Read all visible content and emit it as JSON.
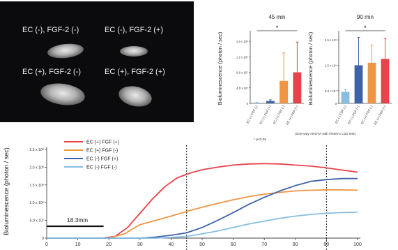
{
  "photo": {
    "labels": [
      "EC (-), FGF-2 (-)",
      "EC (-), FGF-2 (+)",
      "EC (+), FGF-2 (-)",
      "EC (+), FGF-2 (+)"
    ]
  },
  "colors": {
    "ec_pos_fgf_pos": "#e8424b",
    "ec_pos_fgf_neg": "#ee9645",
    "ec_neg_fgf_pos": "#3e62a8",
    "ec_neg_fgf_neg": "#86bde0"
  },
  "bar_common": {
    "ylabel": "Bioluminescence (photon / sec)",
    "significance": "*",
    "categories": [
      "EC (-) FGF (-)",
      "EC (-) FGF (+)",
      "EC (+) FGF (-)",
      "EC (+) FGF (+)"
    ],
    "footnote_left": "* p<0.05",
    "footnote_right": "(One-way ANOVA with Fisher's LSD test)"
  },
  "chart_data": [
    {
      "type": "bar",
      "title": "45 min",
      "ylabel": "Bioluminescence (photon / sec)",
      "categories": [
        "EC (-) FGF (-)",
        "EC (-) FGF (+)",
        "EC (+) FGF (-)",
        "EC (+) FGF (+)"
      ],
      "values": [
        1500000,
        6000000,
        58000000,
        80000000
      ],
      "errors": [
        1000000,
        3000000,
        72000000,
        78000000
      ],
      "ylim": [
        0,
        180000000
      ],
      "yticks": [
        0,
        40000000,
        80000000,
        120000000,
        160000000
      ],
      "ytick_labels": [
        "0",
        "4.0 x 10⁷",
        "8.0 x 10⁷",
        "1.2 x 10⁸",
        "1.6 x 10⁸"
      ]
    },
    {
      "type": "bar",
      "title": "90 min",
      "ylabel": "Bioluminescence (photon / sec)",
      "categories": [
        "EC (-) FGF (-)",
        "EC (-) FGF (+)",
        "EC (+) FGF (-)",
        "EC (+) FGF (+)"
      ],
      "values": [
        45000000,
        150000000,
        160000000,
        175000000
      ],
      "errors": [
        10000000,
        110000000,
        70000000,
        80000000
      ],
      "ylim": [
        0,
        275000000
      ],
      "yticks": [
        0,
        50000000,
        150000000,
        250000000
      ],
      "ytick_labels": [
        "0",
        "5.0 x 10⁷",
        "1.5 x 10⁸",
        "2.5 x 10⁸"
      ]
    },
    {
      "type": "line",
      "ylabel": "Bioluminescence (photon / sec)",
      "xlim": [
        0,
        100
      ],
      "ylim": [
        0,
        250000000
      ],
      "xticks": [
        0,
        10,
        20,
        30,
        40,
        50,
        60,
        70,
        80,
        90,
        100
      ],
      "yticks": [
        0,
        50000000,
        100000000,
        150000000,
        200000000,
        250000000
      ],
      "ytick_labels": [
        "0",
        "5.0 x 10⁷",
        "1.0 x 10⁸",
        "1.5 x 10⁸",
        "2.0 x 10⁸",
        "2.5 x 10⁸"
      ],
      "vlines": [
        45,
        90
      ],
      "annotation": "18.3min",
      "annotation_range": [
        0,
        18.3
      ],
      "legend_position": "top-left",
      "series": [
        {
          "name": "EC (+) FGF (+)",
          "color_key": "ec_pos_fgf_pos",
          "x": [
            0,
            18,
            22,
            26,
            30,
            34,
            38,
            42,
            46,
            50,
            55,
            60,
            65,
            70,
            75,
            80,
            85,
            90,
            95,
            100
          ],
          "y": [
            0,
            0,
            5000000,
            30000000,
            70000000,
            110000000,
            145000000,
            170000000,
            183000000,
            193000000,
            200000000,
            206000000,
            209000000,
            210000000,
            209000000,
            206000000,
            203000000,
            198000000,
            192000000,
            186000000
          ]
        },
        {
          "name": "EC (+) FGF (-)",
          "color_key": "ec_pos_fgf_neg",
          "x": [
            0,
            20,
            25,
            30,
            35,
            40,
            45,
            50,
            55,
            60,
            65,
            70,
            75,
            80,
            85,
            90,
            95,
            100
          ],
          "y": [
            0,
            0,
            12000000,
            38000000,
            50000000,
            62000000,
            75000000,
            87000000,
            98000000,
            108000000,
            117000000,
            124000000,
            129000000,
            133000000,
            135000000,
            136000000,
            136000000,
            135000000
          ]
        },
        {
          "name": "EC (-) FGF (+)",
          "color_key": "ec_neg_fgf_pos",
          "x": [
            0,
            30,
            35,
            40,
            45,
            50,
            55,
            60,
            65,
            70,
            75,
            80,
            85,
            90,
            95,
            100
          ],
          "y": [
            0,
            0,
            3000000,
            8000000,
            15000000,
            30000000,
            50000000,
            72000000,
            95000000,
            115000000,
            133000000,
            148000000,
            160000000,
            165000000,
            168000000,
            168000000
          ]
        },
        {
          "name": "EC (-) FGF (-)",
          "color_key": "ec_neg_fgf_neg",
          "x": [
            0,
            35,
            40,
            45,
            50,
            55,
            60,
            65,
            70,
            75,
            80,
            85,
            90,
            95,
            100
          ],
          "y": [
            0,
            0,
            2000000,
            5000000,
            12000000,
            20000000,
            30000000,
            40000000,
            48000000,
            56000000,
            62000000,
            67000000,
            70000000,
            72000000,
            73000000
          ]
        }
      ]
    }
  ]
}
